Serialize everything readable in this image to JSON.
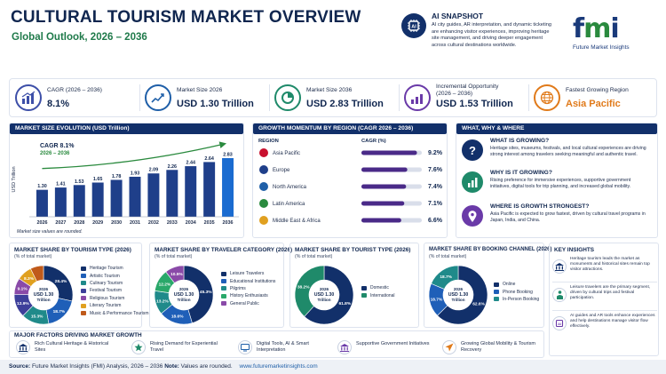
{
  "header": {
    "title": "CULTURAL TOURISM MARKET OVERVIEW",
    "subtitle": "Global Outlook, 2026 – 2036"
  },
  "snapshot": {
    "title": "AI SNAPSHOT",
    "text": "AI city guides, AR interpretation, and dynamic ticketing are enhancing visitor experiences, improving heritage site management, and driving deeper engagement across cultural destinations worldwide."
  },
  "logo": {
    "letters": [
      "f",
      "m",
      "i"
    ],
    "caption": "Future Market Insights"
  },
  "kpis": [
    {
      "label": "CAGR (2026 – 2036)",
      "value": "8.1%",
      "color": "#3d4fa8",
      "icon": "bar-growth-icon"
    },
    {
      "label": "Market Size 2026",
      "value": "USD 1.30 Trillion",
      "color": "#1f5fa8",
      "icon": "line-chart-icon"
    },
    {
      "label": "Market Size 2036",
      "value": "USD 2.83 Trillion",
      "color": "#1f8a6a",
      "icon": "pie-chart-icon"
    },
    {
      "label": "Incremental Opportunity\n(2026 – 2036)",
      "value": "USD 1.53 Trillion",
      "color": "#6a3aa8",
      "icon": "opportunity-icon"
    },
    {
      "label": "Fastest Growing Region",
      "value": "Asia Pacific",
      "color": "#e07a1a",
      "icon": "globe-icon"
    }
  ],
  "evolution": {
    "heading": "MARKET SIZE EVOLUTION (USD Trillion)",
    "cagr_label": "CAGR 8.1%",
    "cagr_period": "2026 – 2036",
    "note": "Market size values are rounded."
  },
  "growth": {
    "heading": "GROWTH MOMENTUM BY REGION (CAGR 2026 – 2036)",
    "col_region": "REGION",
    "col_cagr": "CAGR (%)"
  },
  "www": {
    "heading": "WHAT, WHY & WHERE",
    "items": [
      {
        "title": "WHAT IS GROWING?",
        "text": "Heritage sites, museums, festivals, and local cultural experiences are driving strong interest among travelers seeking meaningful and authentic travel.",
        "icon": "question-icon"
      },
      {
        "title": "WHY IS IT GROWING?",
        "text": "Rising preference for immersive experiences, supportive government initiatives, digital tools for trip planning, and increased global mobility.",
        "icon": "growth-chart-icon"
      },
      {
        "title": "WHERE IS GROWTH STRONGEST?",
        "text": "Asia Pacific is expected to grow fastest, driven by cultural travel programs in Japan, India, and China.",
        "icon": "location-pin-icon"
      }
    ]
  },
  "donuts": [
    {
      "title": "MARKET SHARE BY TOURISM TYPE (2026)",
      "sub": "(% of total market)",
      "center": [
        "2026",
        "USD 1.30",
        "Trillion"
      ]
    },
    {
      "title": "MARKET SHARE BY TRAVELER CATEGORY (2026)",
      "sub": "(% of total market)",
      "center": [
        "2026",
        "USD 1.30",
        "Trillion"
      ]
    },
    {
      "title": "MARKET SHARE BY TOURIST TYPE (2026)",
      "sub": "(% of total market)",
      "center": [
        "2026",
        "USD 1.30",
        "Trillion"
      ]
    },
    {
      "title": "MARKET SHARE BY BOOKING CHANNEL (2026)",
      "sub": "(% of total market)",
      "center": [
        "2026",
        "USD 1.30",
        "Trillion"
      ]
    }
  ],
  "insights": {
    "heading": "KEY INSIGHTS",
    "items": [
      {
        "text": "Heritage tourism leads the market as monuments and historical sites remain top visitor attractions.",
        "icon": "museum-icon"
      },
      {
        "text": "Leisure travelers are the primary segment, driven by cultural trips and festival participation.",
        "icon": "traveler-icon"
      },
      {
        "text": "AI guides and AR tools enhance experiences and help destinations manage visitor flow effectively.",
        "icon": "ai-chip-icon"
      }
    ]
  },
  "factors": {
    "heading": "MAJOR FACTORS DRIVING MARKET GROWTH",
    "items": [
      {
        "text": "Rich Cultural Heritage & Historical Sites",
        "icon": "heritage-icon"
      },
      {
        "text": "Rising Demand for Experiential Travel",
        "icon": "experience-icon"
      },
      {
        "text": "Digital Tools, AI & Smart Interpretation",
        "icon": "digital-icon"
      },
      {
        "text": "Supportive Government Initiatives",
        "icon": "government-icon"
      },
      {
        "text": "Growing Global Mobility & Tourism Recovery",
        "icon": "plane-icon"
      }
    ]
  },
  "footer": {
    "source_label": "Source:",
    "source": "Future Market Insights (FMI) Analysis, 2026 – 2036",
    "note_label": "Note:",
    "note": "Values are rounded.",
    "url": "www.futuremarketinsights.com"
  },
  "chart_data": [
    {
      "type": "bar",
      "title": "MARKET SIZE EVOLUTION (USD Trillion)",
      "ylabel": "USD Trillion",
      "categories": [
        "2026",
        "2027",
        "2028",
        "2029",
        "2030",
        "2031",
        "2032",
        "2033",
        "2034",
        "2035",
        "2036"
      ],
      "values": [
        1.3,
        1.41,
        1.53,
        1.65,
        1.78,
        1.93,
        2.09,
        2.26,
        2.44,
        2.64,
        2.83
      ],
      "value_labels": [
        "1.30",
        "1.41",
        "1.53",
        "1.65",
        "1.78",
        "1.93",
        "2.09",
        "2.26",
        "2.44",
        "2.64",
        "2.83"
      ],
      "ylim": [
        0,
        3
      ],
      "colors": {
        "bar": "#1f3f8a",
        "last": "#1a6bd0",
        "trend": "#2a8a3e"
      }
    },
    {
      "type": "bar",
      "title": "GROWTH MOMENTUM BY REGION (CAGR 2026 – 2036)",
      "categories": [
        "Asia Pacific",
        "Europe",
        "North America",
        "Latin America",
        "Middle East & Africa"
      ],
      "values": [
        9.2,
        7.6,
        7.4,
        7.1,
        6.6
      ],
      "value_labels": [
        "9.2%",
        "7.6%",
        "7.4%",
        "7.1%",
        "6.6%"
      ],
      "xlim": [
        0,
        10
      ],
      "colors": {
        "bar": "#4a2a88",
        "track": "#d9deea"
      }
    },
    {
      "type": "pie",
      "title": "MARKET SHARE BY TOURISM TYPE (2026)",
      "labels": [
        "Heritage Tourism",
        "Artistic Tourism",
        "Culinary Tourism",
        "Festival Tourism",
        "Religious Tourism",
        "Literary Tourism",
        "Music & Performance Tourism"
      ],
      "values": [
        28.4,
        18.7,
        15.3,
        12.9,
        9.1,
        8.3,
        7.3
      ],
      "slice_labels": [
        "28.4%",
        "18.7%",
        "15.3%",
        "12.9%",
        "9.1%",
        "8.3%",
        ""
      ],
      "colors": [
        "#12306a",
        "#1f5fb8",
        "#1f8a8a",
        "#3d3f9a",
        "#8a4aa8",
        "#e0a020",
        "#c05a1a"
      ]
    },
    {
      "type": "pie",
      "title": "MARKET SHARE BY TRAVELER CATEGORY (2026)",
      "labels": [
        "Leisure Travelers",
        "Educational Institutions",
        "Pilgrims",
        "History Enthusiasts",
        "General Public"
      ],
      "values": [
        45.3,
        18.6,
        13.2,
        12.2,
        10.5
      ],
      "slice_labels": [
        "45.3%",
        "18.6%",
        "13.2%",
        "12.2%",
        "10.5%"
      ],
      "colors": [
        "#12306a",
        "#1f5fb8",
        "#1f8a8a",
        "#2aa86a",
        "#8a4aa8"
      ]
    },
    {
      "type": "pie",
      "title": "MARKET SHARE BY TOURIST TYPE (2026)",
      "labels": [
        "Domestic",
        "International"
      ],
      "values": [
        61.8,
        38.2
      ],
      "slice_labels": [
        "61.8%",
        "38.2%"
      ],
      "colors": [
        "#12306a",
        "#1f8a6a"
      ]
    },
    {
      "type": "pie",
      "title": "MARKET SHARE BY BOOKING CHANNEL (2026)",
      "labels": [
        "Online",
        "Phone Booking",
        "In-Person Booking"
      ],
      "values": [
        62.6,
        18.7,
        18.7
      ],
      "slice_labels": [
        "62.6%",
        "18.7%",
        "18.7%"
      ],
      "colors": [
        "#12306a",
        "#1f5fb8",
        "#1f8a8a"
      ]
    }
  ]
}
